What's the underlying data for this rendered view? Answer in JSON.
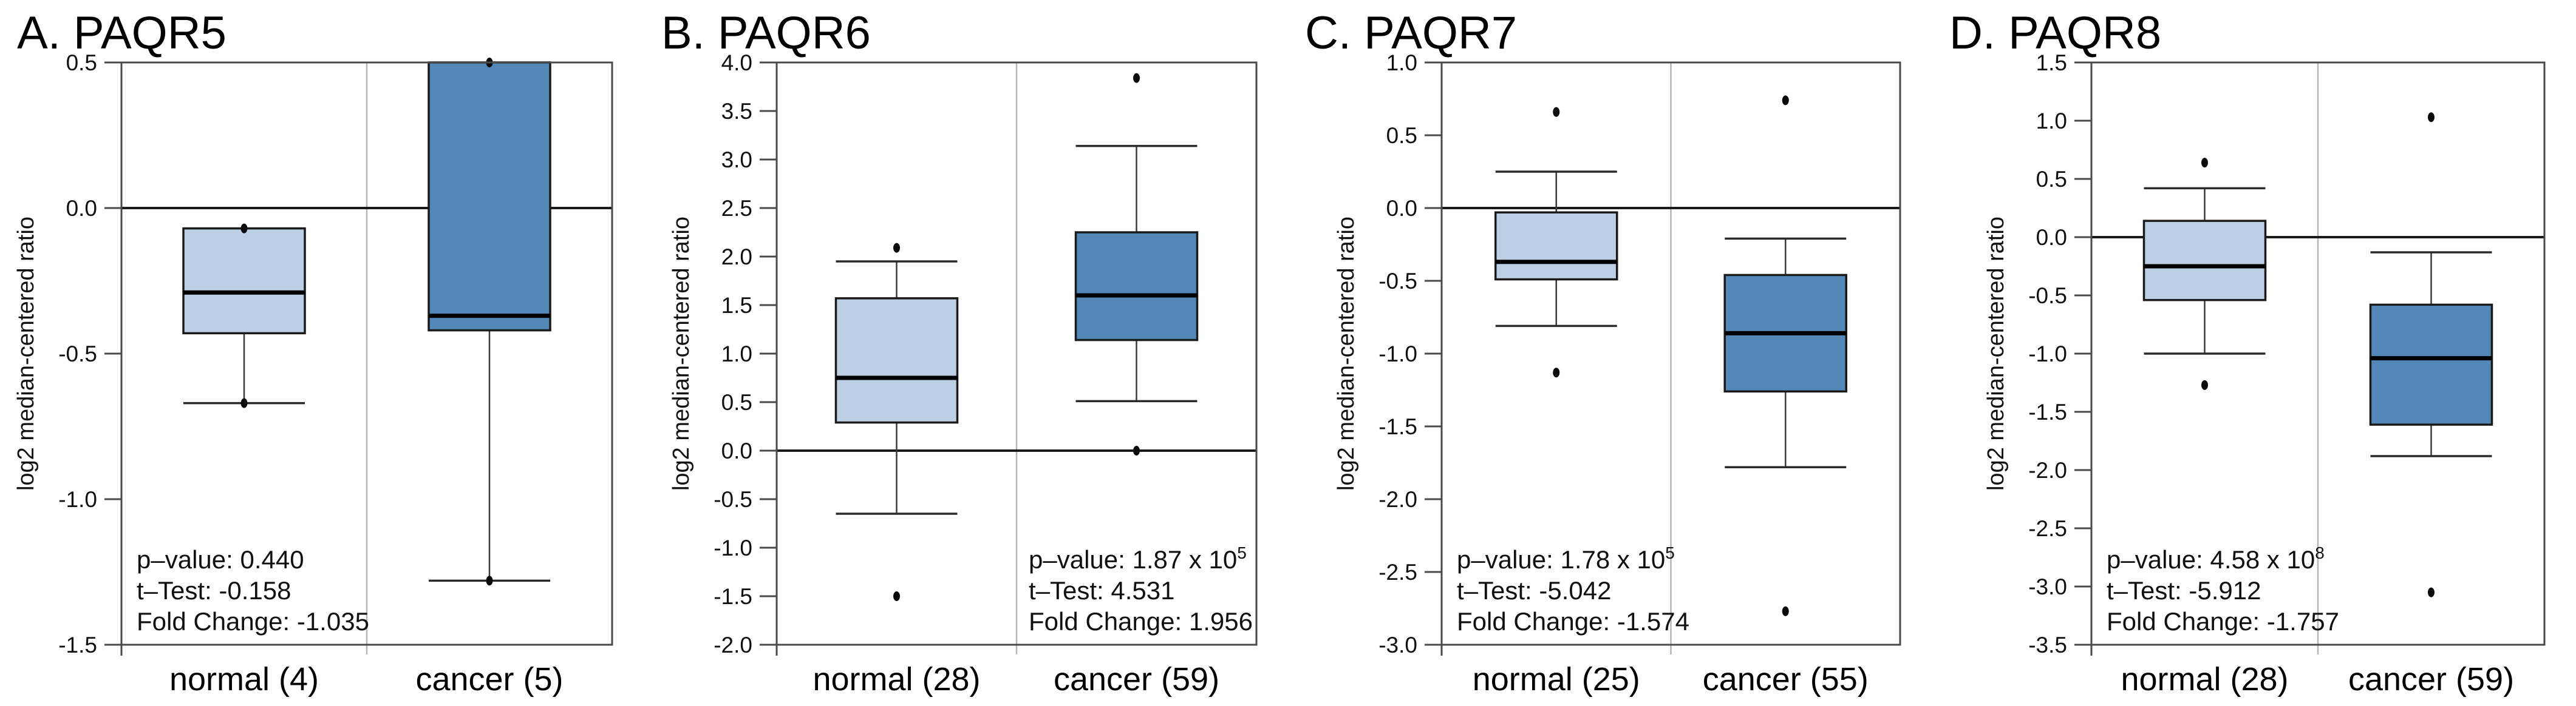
{
  "figure": {
    "ylabel": "log2 median-centered ratio",
    "colors": {
      "normal_fill": "#bccfe5",
      "cancer_fill": "#5287b8",
      "box_border": "#1a1a1a",
      "median_line": "#000000",
      "whisker": "#3a3a3a",
      "frame": "#4a4a4a",
      "column_separator": "#b5b5b5",
      "zero_line": "#1a1a1a",
      "dot": "#0b0b0b",
      "text": "#111111"
    }
  },
  "chart_data": [
    {
      "type": "box",
      "title": "A. PAQR5",
      "ylabel": "log2 median-centered ratio",
      "ylim": [
        -1.5,
        0.5
      ],
      "ytick_step": 0.5,
      "grid": "column separator only",
      "legend": "none",
      "yticks": [
        "0.5",
        "0.0",
        "-0.5",
        "-1.0",
        "-1.5"
      ],
      "categories": [
        "normal (4)",
        "cancer (5)"
      ],
      "groups": [
        {
          "label": "normal (4)",
          "n": 4,
          "role": "normal",
          "whisker_low": -0.67,
          "q1": -0.43,
          "median": -0.29,
          "q3": -0.07,
          "whisker_high": -0.07,
          "points": [
            -0.07,
            -0.67
          ]
        },
        {
          "label": "cancer (5)",
          "n": 5,
          "role": "cancer",
          "whisker_low": -1.28,
          "q1": -0.42,
          "median": -0.37,
          "q3": 0.5,
          "whisker_high": 0.5,
          "points": [
            0.5,
            -1.28
          ]
        }
      ],
      "stats": {
        "p": "p–value: 0.440",
        "p_exp": "",
        "t": "t–Test: -0.158",
        "fold": "Fold Change: -1.035",
        "position": "left"
      }
    },
    {
      "type": "box",
      "title": "B. PAQR6",
      "ylabel": "log2 median-centered ratio",
      "ylim": [
        -2.0,
        4.0
      ],
      "ytick_step": 0.5,
      "grid": "column separator only",
      "legend": "none",
      "yticks": [
        "4.0",
        "3.5",
        "3.0",
        "2.5",
        "2.0",
        "1.5",
        "1.0",
        "0.5",
        "0.0",
        "-0.5",
        "-1.0",
        "-1.5",
        "-2.0"
      ],
      "categories": [
        "normal (28)",
        "cancer (59)"
      ],
      "groups": [
        {
          "label": "normal (28)",
          "n": 28,
          "role": "normal",
          "whisker_low": -0.65,
          "q1": 0.29,
          "median": 0.75,
          "q3": 1.57,
          "whisker_high": 1.95,
          "points": [
            2.09,
            -1.5
          ]
        },
        {
          "label": "cancer (59)",
          "n": 59,
          "role": "cancer",
          "whisker_low": 0.51,
          "q1": 1.14,
          "median": 1.6,
          "q3": 2.25,
          "whisker_high": 3.14,
          "points": [
            3.84,
            0.0
          ]
        }
      ],
      "stats": {
        "p": "p–value: 1.87 x 10",
        "p_exp": "5",
        "t": "t–Test: 4.531",
        "fold": "Fold Change: 1.956",
        "position": "right"
      }
    },
    {
      "type": "box",
      "title": "C. PAQR7",
      "ylabel": "log2 median-centered ratio",
      "ylim": [
        -3.0,
        1.0
      ],
      "ytick_step": 0.5,
      "grid": "column separator only",
      "legend": "none",
      "yticks": [
        "1.0",
        "0.5",
        "0.0",
        "-0.5",
        "-1.0",
        "-1.5",
        "-2.0",
        "-2.5",
        "-3.0"
      ],
      "categories": [
        "normal (25)",
        "cancer (55)"
      ],
      "groups": [
        {
          "label": "normal (25)",
          "n": 25,
          "role": "normal",
          "whisker_low": -0.81,
          "q1": -0.49,
          "median": -0.37,
          "q3": -0.03,
          "whisker_high": 0.25,
          "points": [
            0.66,
            -1.13
          ]
        },
        {
          "label": "cancer (55)",
          "n": 55,
          "role": "cancer",
          "whisker_low": -1.78,
          "q1": -1.26,
          "median": -0.86,
          "q3": -0.46,
          "whisker_high": -0.21,
          "points": [
            0.74,
            -2.77
          ]
        }
      ],
      "stats": {
        "p": "p–value: 1.78 x 10",
        "p_exp": "5",
        "t": "t–Test: -5.042",
        "fold": "Fold Change: -1.574",
        "position": "left"
      }
    },
    {
      "type": "box",
      "title": "D. PAQR8",
      "ylabel": "log2 median-centered ratio",
      "ylim": [
        -3.5,
        1.5
      ],
      "ytick_step": 0.5,
      "grid": "column separator only",
      "legend": "none",
      "yticks": [
        "1.5",
        "1.0",
        "0.5",
        "0.0",
        "-0.5",
        "-1.0",
        "-1.5",
        "-2.0",
        "-2.5",
        "-3.0",
        "-3.5"
      ],
      "categories": [
        "normal (28)",
        "cancer (59)"
      ],
      "groups": [
        {
          "label": "normal (28)",
          "n": 28,
          "role": "normal",
          "whisker_low": -1.0,
          "q1": -0.54,
          "median": -0.25,
          "q3": 0.14,
          "whisker_high": 0.42,
          "points": [
            0.64,
            -1.27
          ]
        },
        {
          "label": "cancer (59)",
          "n": 59,
          "role": "cancer",
          "whisker_low": -1.88,
          "q1": -1.61,
          "median": -1.04,
          "q3": -0.58,
          "whisker_high": -0.13,
          "points": [
            1.03,
            -3.05
          ]
        }
      ],
      "stats": {
        "p": "p–value: 4.58 x 10",
        "p_exp": "8",
        "t": "t–Test: -5.912",
        "fold": "Fold Change: -1.757",
        "position": "left"
      }
    }
  ]
}
